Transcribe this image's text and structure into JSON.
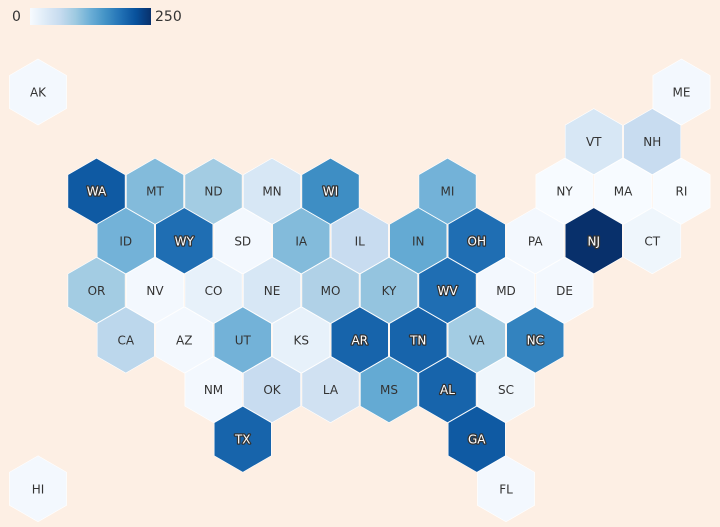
{
  "chart_data": {
    "type": "hexmap",
    "domain": [
      0,
      250
    ],
    "colorscale": [
      "#f7fbff",
      "#deebf7",
      "#c6dbef",
      "#9ecae1",
      "#6baed6",
      "#4292c6",
      "#2171b5",
      "#08519c",
      "#08306b"
    ],
    "states": [
      "AK",
      "ME",
      "VT",
      "NH",
      "WA",
      "MT",
      "ND",
      "MN",
      "WI",
      "MI",
      "NY",
      "MA",
      "RI",
      "ID",
      "WY",
      "SD",
      "IA",
      "IL",
      "IN",
      "OH",
      "PA",
      "NJ",
      "CT",
      "OR",
      "NV",
      "CO",
      "NE",
      "MO",
      "KY",
      "WV",
      "MD",
      "DE",
      "CA",
      "AZ",
      "UT",
      "KS",
      "AR",
      "TN",
      "VA",
      "NC",
      "NM",
      "OK",
      "LA",
      "MS",
      "AL",
      "SC",
      "TX",
      "GA",
      "HI",
      "FL"
    ],
    "values": [
      5,
      5,
      40,
      60,
      210,
      110,
      90,
      40,
      160,
      120,
      0,
      0,
      0,
      120,
      190,
      5,
      110,
      60,
      130,
      190,
      5,
      250,
      10,
      90,
      5,
      20,
      40,
      80,
      100,
      190,
      5,
      5,
      70,
      5,
      120,
      20,
      200,
      200,
      90,
      170,
      5,
      60,
      50,
      130,
      200,
      10,
      200,
      210,
      5,
      5
    ]
  }
}
